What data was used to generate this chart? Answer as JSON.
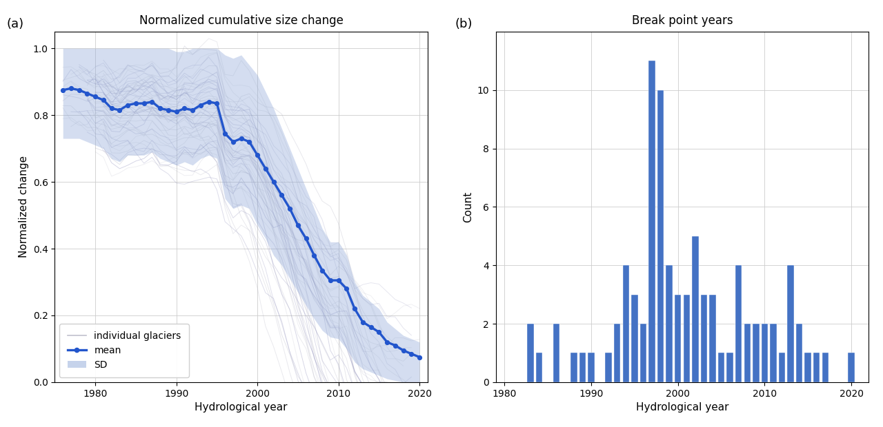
{
  "title_a": "Normalized cumulative size change",
  "title_b": "Break point years",
  "xlabel": "Hydrological year",
  "ylabel_a": "Normalized change",
  "ylabel_b": "Count",
  "label_a": "(a)",
  "label_b": "(b)",
  "mean_years": [
    1976,
    1977,
    1978,
    1979,
    1980,
    1981,
    1982,
    1983,
    1984,
    1985,
    1986,
    1987,
    1988,
    1989,
    1990,
    1991,
    1992,
    1993,
    1994,
    1995,
    1996,
    1997,
    1998,
    1999,
    2000,
    2001,
    2002,
    2003,
    2004,
    2005,
    2006,
    2007,
    2008,
    2009,
    2010,
    2011,
    2012,
    2013,
    2014,
    2015,
    2016,
    2017,
    2018,
    2019,
    2020
  ],
  "mean_values": [
    0.875,
    0.88,
    0.875,
    0.865,
    0.855,
    0.845,
    0.82,
    0.815,
    0.83,
    0.835,
    0.835,
    0.84,
    0.82,
    0.815,
    0.81,
    0.82,
    0.815,
    0.83,
    0.84,
    0.835,
    0.745,
    0.72,
    0.73,
    0.72,
    0.68,
    0.64,
    0.6,
    0.56,
    0.52,
    0.47,
    0.43,
    0.38,
    0.335,
    0.305,
    0.305,
    0.28,
    0.22,
    0.18,
    0.165,
    0.15,
    0.12,
    0.11,
    0.095,
    0.085,
    0.075
  ],
  "sd_upper": [
    1.0,
    1.0,
    1.0,
    1.0,
    1.0,
    1.0,
    1.0,
    1.0,
    1.0,
    1.0,
    1.0,
    1.0,
    1.0,
    1.0,
    0.99,
    0.99,
    1.0,
    1.0,
    1.0,
    1.0,
    0.98,
    0.97,
    0.98,
    0.95,
    0.92,
    0.87,
    0.82,
    0.76,
    0.7,
    0.64,
    0.58,
    0.52,
    0.46,
    0.42,
    0.42,
    0.38,
    0.3,
    0.26,
    0.24,
    0.22,
    0.18,
    0.16,
    0.14,
    0.13,
    0.12
  ],
  "sd_lower": [
    0.73,
    0.73,
    0.73,
    0.72,
    0.71,
    0.7,
    0.67,
    0.66,
    0.68,
    0.68,
    0.68,
    0.69,
    0.67,
    0.66,
    0.65,
    0.66,
    0.65,
    0.67,
    0.68,
    0.67,
    0.55,
    0.52,
    0.53,
    0.52,
    0.47,
    0.43,
    0.38,
    0.35,
    0.31,
    0.27,
    0.23,
    0.19,
    0.155,
    0.135,
    0.13,
    0.1,
    0.06,
    0.04,
    0.03,
    0.02,
    0.01,
    0.005,
    0.0,
    0.0,
    0.0
  ],
  "bar_years": [
    1983,
    1984,
    1986,
    1988,
    1989,
    1990,
    1992,
    1993,
    1994,
    1995,
    1996,
    1997,
    1998,
    1999,
    2000,
    2001,
    2002,
    2003,
    2004,
    2005,
    2006,
    2007,
    2008,
    2009,
    2010,
    2011,
    2012,
    2013,
    2014,
    2015,
    2016,
    2017,
    2020
  ],
  "bar_counts": [
    2,
    1,
    2,
    1,
    1,
    1,
    1,
    2,
    4,
    3,
    2,
    11,
    10,
    4,
    3,
    3,
    5,
    3,
    3,
    1,
    1,
    4,
    2,
    2,
    2,
    2,
    1,
    4,
    2,
    1,
    1,
    1,
    1
  ],
  "bar_color": "#4472c4",
  "mean_color": "#2255cc",
  "sd_color": "#8fa8d8",
  "individual_color_grey": "#b0b0c0",
  "individual_color_blue": "#9090bb",
  "xlim_a": [
    1975,
    2021
  ],
  "xlim_b": [
    1979,
    2022
  ],
  "ylim_a": [
    0.0,
    1.05
  ],
  "ylim_b": [
    0,
    12
  ],
  "xticks_a": [
    1980,
    1990,
    2000,
    2010,
    2020
  ],
  "xticks_b": [
    1980,
    1990,
    2000,
    2010,
    2020
  ],
  "yticks_a": [
    0.0,
    0.2,
    0.4,
    0.6,
    0.8,
    1.0
  ],
  "yticks_b": [
    0,
    2,
    4,
    6,
    8,
    10
  ]
}
